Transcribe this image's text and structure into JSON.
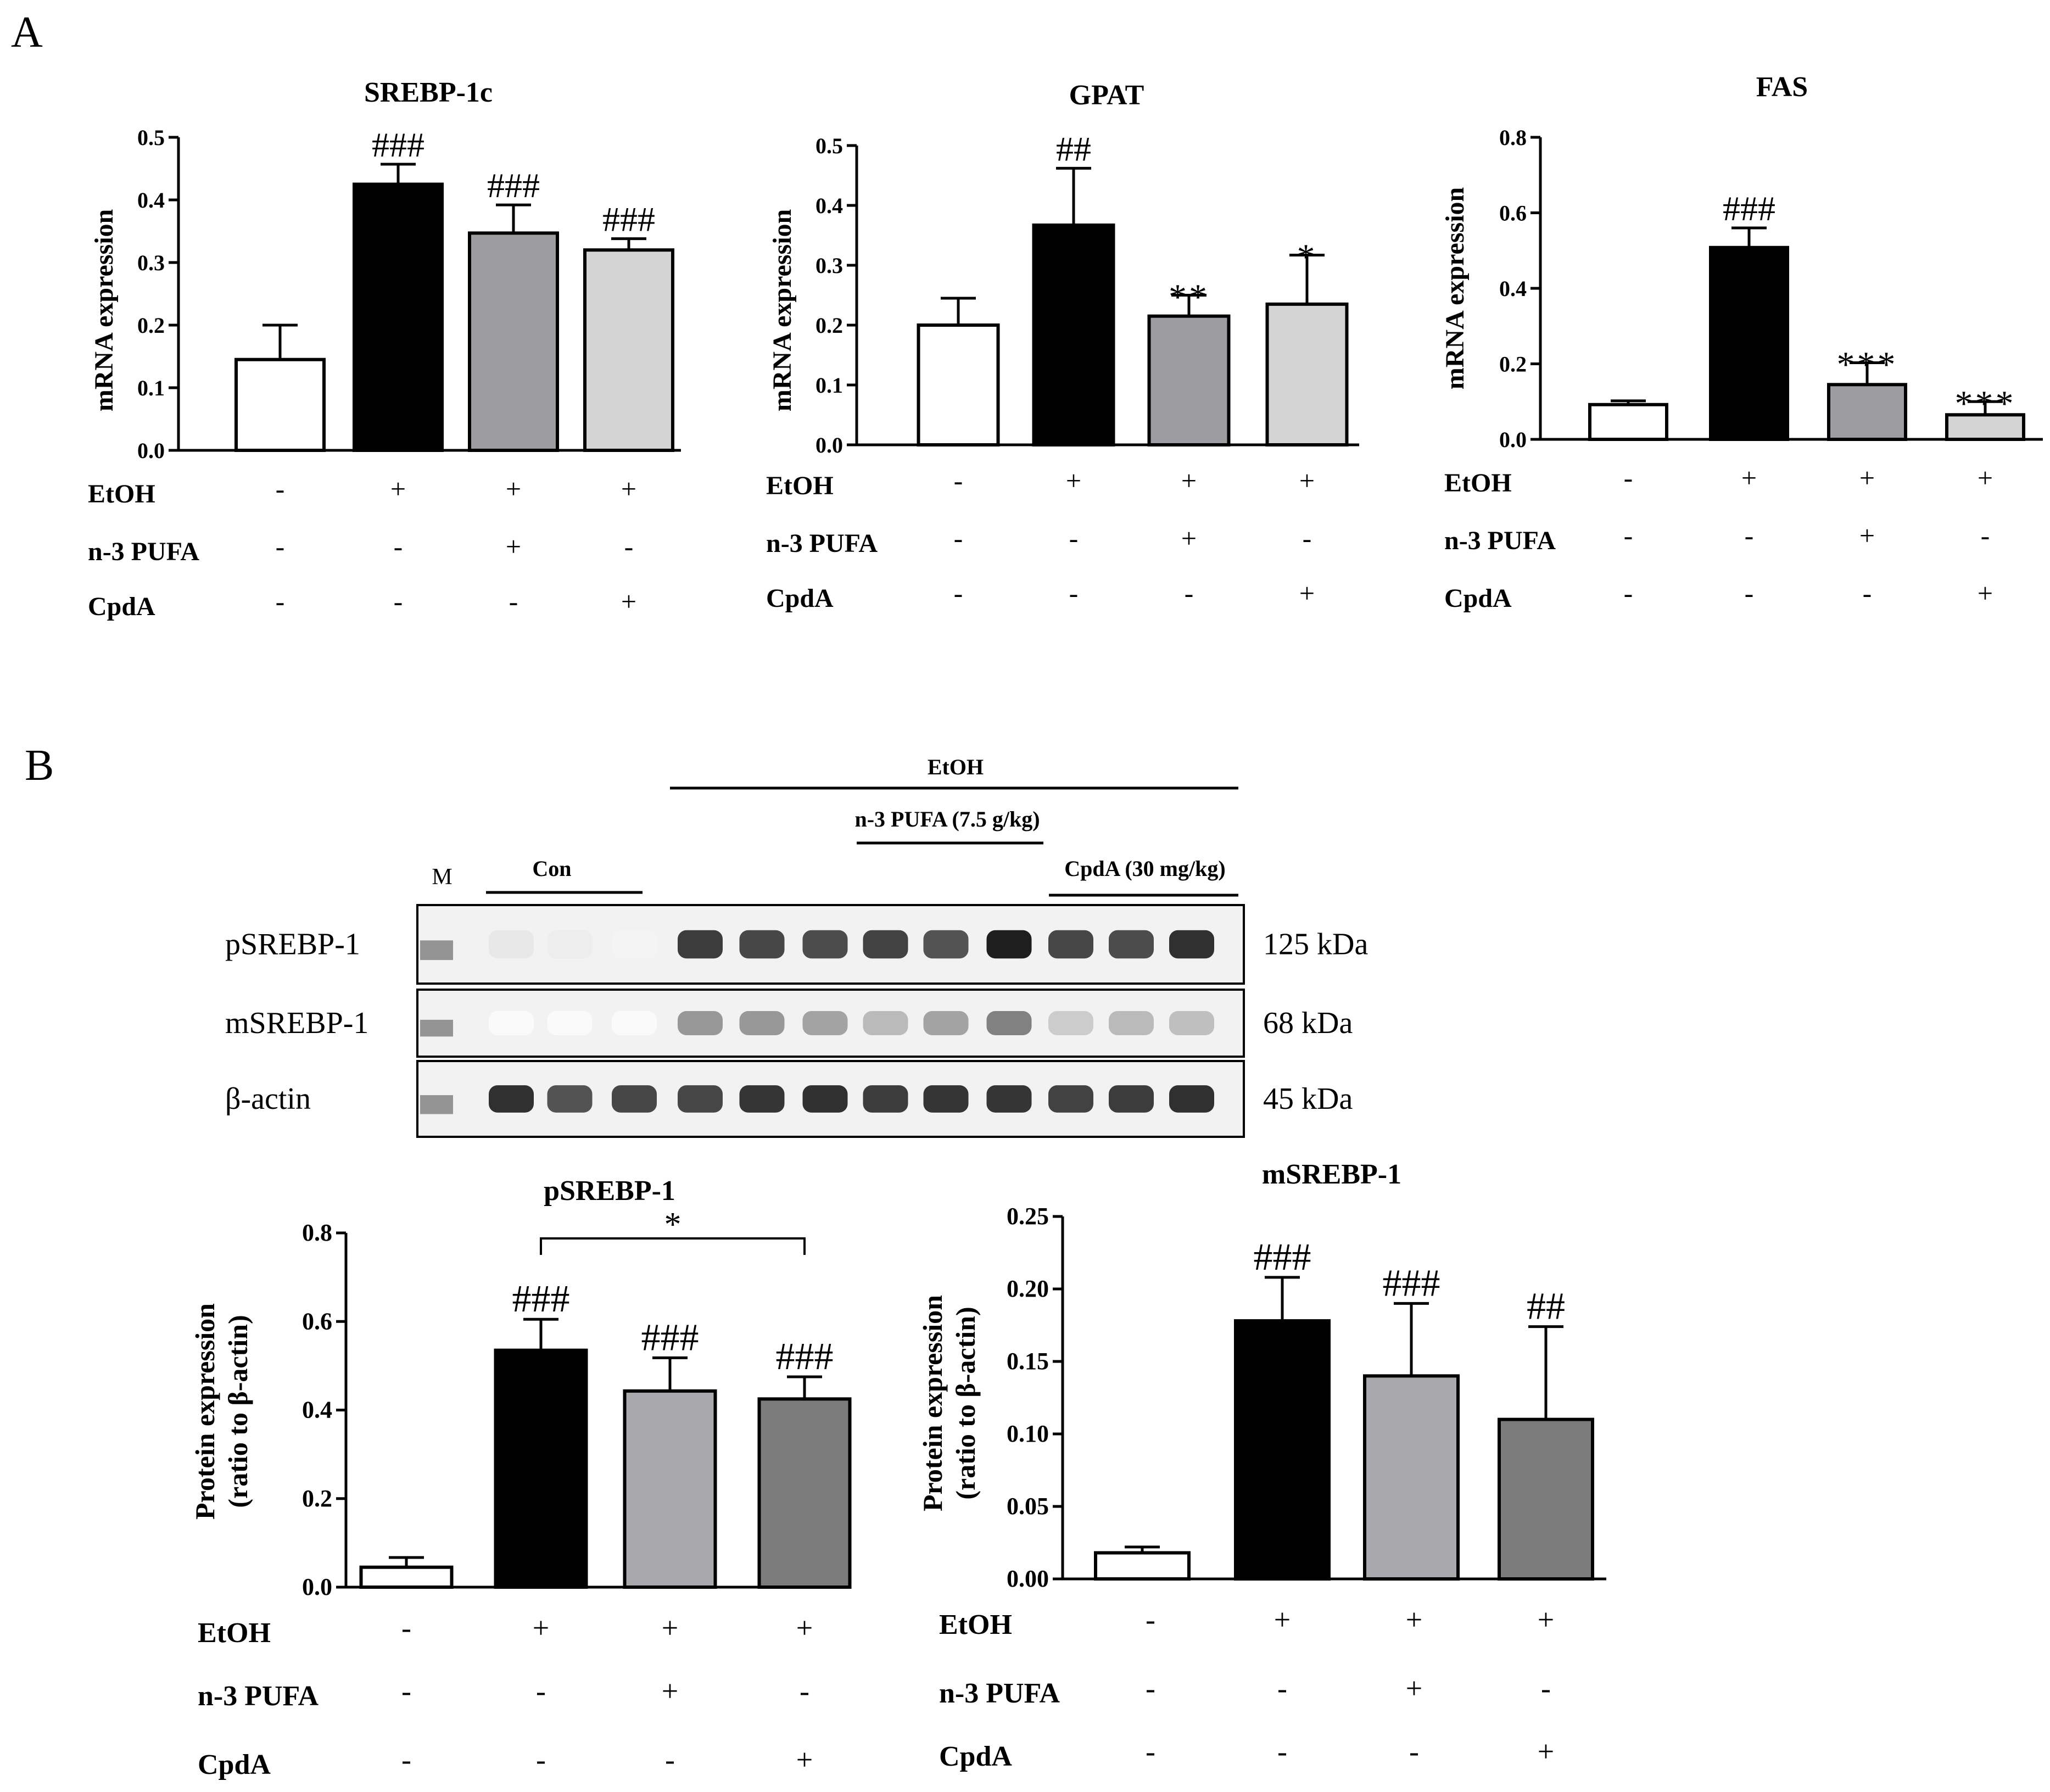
{
  "panels": {
    "A": "A",
    "B": "B"
  },
  "treatment_labels": [
    "EtOH",
    "n-3 PUFA",
    "CpdA"
  ],
  "treatment_signs": {
    "EtOH": [
      "-",
      "+",
      "+",
      "+"
    ],
    "n-3 PUFA": [
      "-",
      "-",
      "+",
      "-"
    ],
    "CpdA": [
      "-",
      "-",
      "-",
      "+"
    ]
  },
  "bar_colors": {
    "A": [
      "#ffffff",
      "#000000",
      "#9d9da1",
      "#d4d4d4"
    ],
    "B": [
      "#ffffff",
      "#000000",
      "#a9a9ad",
      "#7c7c7c"
    ]
  },
  "blot": {
    "header": "EtOH",
    "pufa_label": "n-3 PUFA (7.5 g/kg)",
    "cpda_label": "CpdA (30 mg/kg)",
    "con_label": "Con",
    "marker_label": "M",
    "rows": [
      {
        "name": "pSREBP-1",
        "size": "125 kDa"
      },
      {
        "name": "mSREBP-1",
        "size": "68 kDa"
      },
      {
        "name": "β-actin",
        "size": "45 kDa"
      }
    ]
  },
  "chart_data": [
    {
      "type": "bar",
      "title": "SREBP-1c",
      "ylabel": "mRNA expression",
      "ylim": [
        0,
        0.5
      ],
      "yticks": [
        "0.0",
        "0.1",
        "0.2",
        "0.3",
        "0.4",
        "0.5"
      ],
      "values": [
        0.145,
        0.425,
        0.347,
        0.32
      ],
      "errors": [
        0.055,
        0.032,
        0.045,
        0.018
      ],
      "annotations": [
        "",
        "###",
        "###",
        "###"
      ]
    },
    {
      "type": "bar",
      "title": "GPAT",
      "ylabel": "mRNA expression",
      "ylim": [
        0,
        0.5
      ],
      "yticks": [
        "0.0",
        "0.1",
        "0.2",
        "0.3",
        "0.4",
        "0.5"
      ],
      "values": [
        0.2,
        0.367,
        0.215,
        0.235
      ],
      "errors": [
        0.045,
        0.095,
        0.035,
        0.082
      ],
      "annotations": [
        "",
        "##",
        "**",
        "*"
      ]
    },
    {
      "type": "bar",
      "title": "FAS",
      "ylabel": "mRNA expression",
      "ylim": [
        0,
        0.8
      ],
      "yticks": [
        "0.0",
        "0.2",
        "0.4",
        "0.6",
        "0.8"
      ],
      "values": [
        0.092,
        0.508,
        0.145,
        0.065
      ],
      "errors": [
        0.01,
        0.052,
        0.058,
        0.035
      ],
      "annotations": [
        "",
        "###",
        "***",
        "***"
      ]
    },
    {
      "type": "bar",
      "title": "pSREBP-1",
      "ylabel": [
        "Protein expression",
        "(ratio to β-actin)"
      ],
      "ylim": [
        0,
        0.8
      ],
      "yticks": [
        "0.0",
        "0.2",
        "0.4",
        "0.6",
        "0.8"
      ],
      "values": [
        0.045,
        0.535,
        0.443,
        0.425
      ],
      "errors": [
        0.022,
        0.07,
        0.075,
        0.05
      ],
      "annotations": [
        "",
        "###",
        "###",
        "###"
      ],
      "bracket": {
        "from": 1,
        "to": 3,
        "label": "*"
      }
    },
    {
      "type": "bar",
      "title": "mSREBP-1",
      "ylabel": [
        "Protein expression",
        "(ratio to β-actin)"
      ],
      "ylim": [
        0,
        0.25
      ],
      "yticks": [
        "0.00",
        "0.05",
        "0.10",
        "0.15",
        "0.20",
        "0.25"
      ],
      "values": [
        0.018,
        0.178,
        0.14,
        0.11
      ],
      "errors": [
        0.004,
        0.03,
        0.05,
        0.064
      ],
      "annotations": [
        "",
        "###",
        "###",
        "##"
      ]
    }
  ]
}
